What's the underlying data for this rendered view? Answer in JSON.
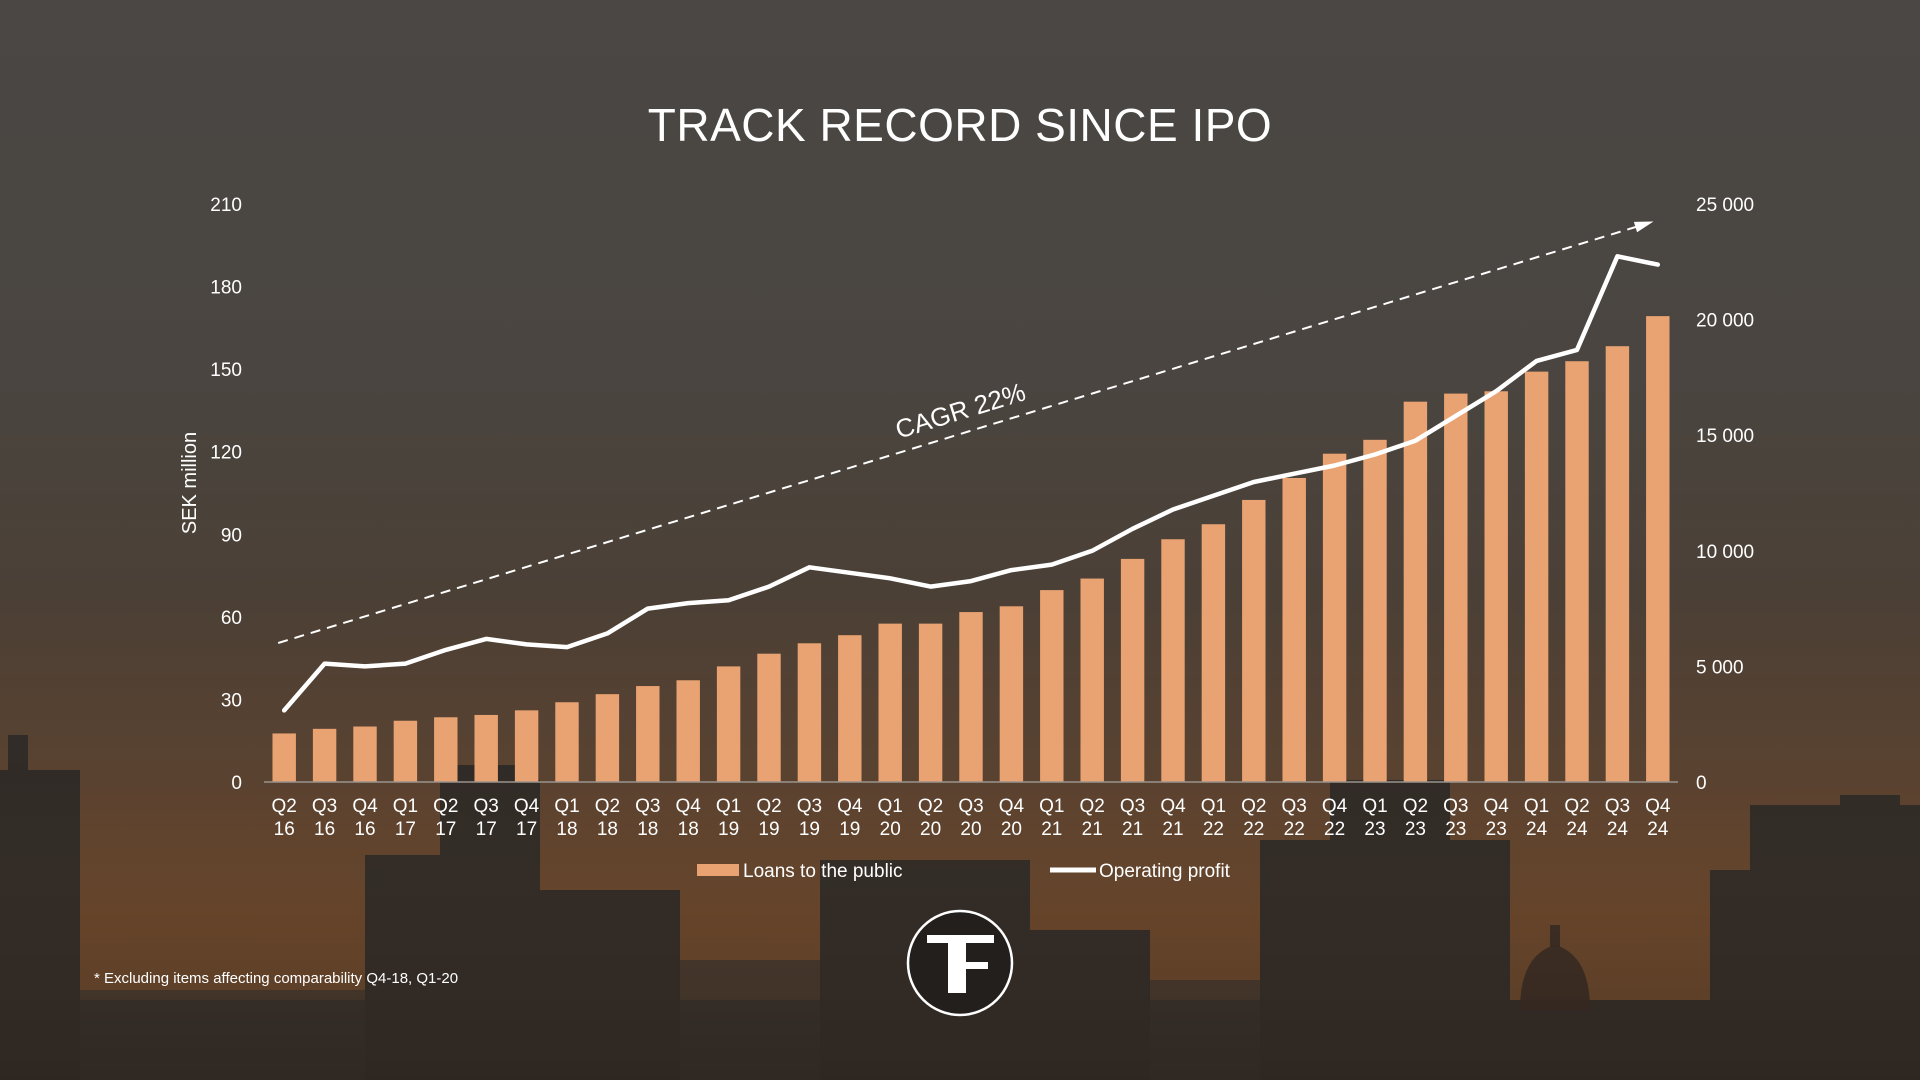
{
  "chart_data": {
    "type": "bar+line",
    "title": "TRACK RECORD SINCE IPO",
    "ylabel_left": "SEK million",
    "left_axis": {
      "min": 0,
      "max": 210,
      "ticks": [
        0,
        30,
        60,
        90,
        120,
        150,
        180,
        210
      ],
      "tick_labels": [
        "0",
        "30",
        "60",
        "90",
        "120",
        "150",
        "180",
        "210"
      ]
    },
    "right_axis": {
      "min": 0,
      "max": 25000,
      "ticks": [
        0,
        5000,
        10000,
        15000,
        20000,
        25000
      ],
      "tick_labels": [
        "0",
        "5 000",
        "10 000",
        "15 000",
        "20 000",
        "25 000"
      ]
    },
    "categories": [
      [
        "Q2",
        "16"
      ],
      [
        "Q3",
        "16"
      ],
      [
        "Q4",
        "16"
      ],
      [
        "Q1",
        "17"
      ],
      [
        "Q2",
        "17"
      ],
      [
        "Q3",
        "17"
      ],
      [
        "Q4",
        "17"
      ],
      [
        "Q1",
        "18"
      ],
      [
        "Q2",
        "18"
      ],
      [
        "Q3",
        "18"
      ],
      [
        "Q4",
        "18"
      ],
      [
        "Q1",
        "19"
      ],
      [
        "Q2",
        "19"
      ],
      [
        "Q3",
        "19"
      ],
      [
        "Q4",
        "19"
      ],
      [
        "Q1",
        "20"
      ],
      [
        "Q2",
        "20"
      ],
      [
        "Q3",
        "20"
      ],
      [
        "Q4",
        "20"
      ],
      [
        "Q1",
        "21"
      ],
      [
        "Q2",
        "21"
      ],
      [
        "Q3",
        "21"
      ],
      [
        "Q4",
        "21"
      ],
      [
        "Q1",
        "22"
      ],
      [
        "Q2",
        "22"
      ],
      [
        "Q3",
        "22"
      ],
      [
        "Q4",
        "22"
      ],
      [
        "Q1",
        "23"
      ],
      [
        "Q2",
        "23"
      ],
      [
        "Q3",
        "23"
      ],
      [
        "Q4",
        "23"
      ],
      [
        "Q1",
        "24"
      ],
      [
        "Q2",
        "24"
      ],
      [
        "Q3",
        "24"
      ],
      [
        "Q4",
        "24"
      ]
    ],
    "series": [
      {
        "name": "Loans to the public",
        "type": "bar",
        "axis": "right",
        "color": "#e9a272",
        "values": [
          2100,
          2300,
          2400,
          2650,
          2800,
          2900,
          3100,
          3450,
          3800,
          4150,
          4400,
          5000,
          5550,
          6000,
          6350,
          6850,
          6850,
          7350,
          7600,
          8300,
          8800,
          9650,
          10500,
          11150,
          12200,
          13150,
          14200,
          14800,
          16450,
          16800,
          16900,
          17750,
          18200,
          18850,
          20150
        ]
      },
      {
        "name": "Operating profit",
        "type": "line",
        "axis": "left",
        "color": "#ffffff",
        "values": [
          26,
          43,
          42,
          43,
          48,
          52,
          50,
          49,
          54,
          63,
          65,
          66,
          71,
          78,
          76,
          74,
          71,
          73,
          77,
          79,
          84,
          92,
          99,
          104,
          109,
          112,
          115,
          119,
          124,
          133,
          142,
          153,
          157,
          191,
          188
        ]
      }
    ],
    "trend": {
      "label": "CAGR 22%",
      "start_value": 50.5,
      "end_value": 203,
      "style": "dashed-arrow",
      "axis": "left"
    },
    "legend": {
      "position": "bottom"
    }
  },
  "footnote": "* Excluding items affecting comparability Q4-18, Q1-20",
  "logo": {
    "letter": "F",
    "alt": "T F monogram"
  }
}
